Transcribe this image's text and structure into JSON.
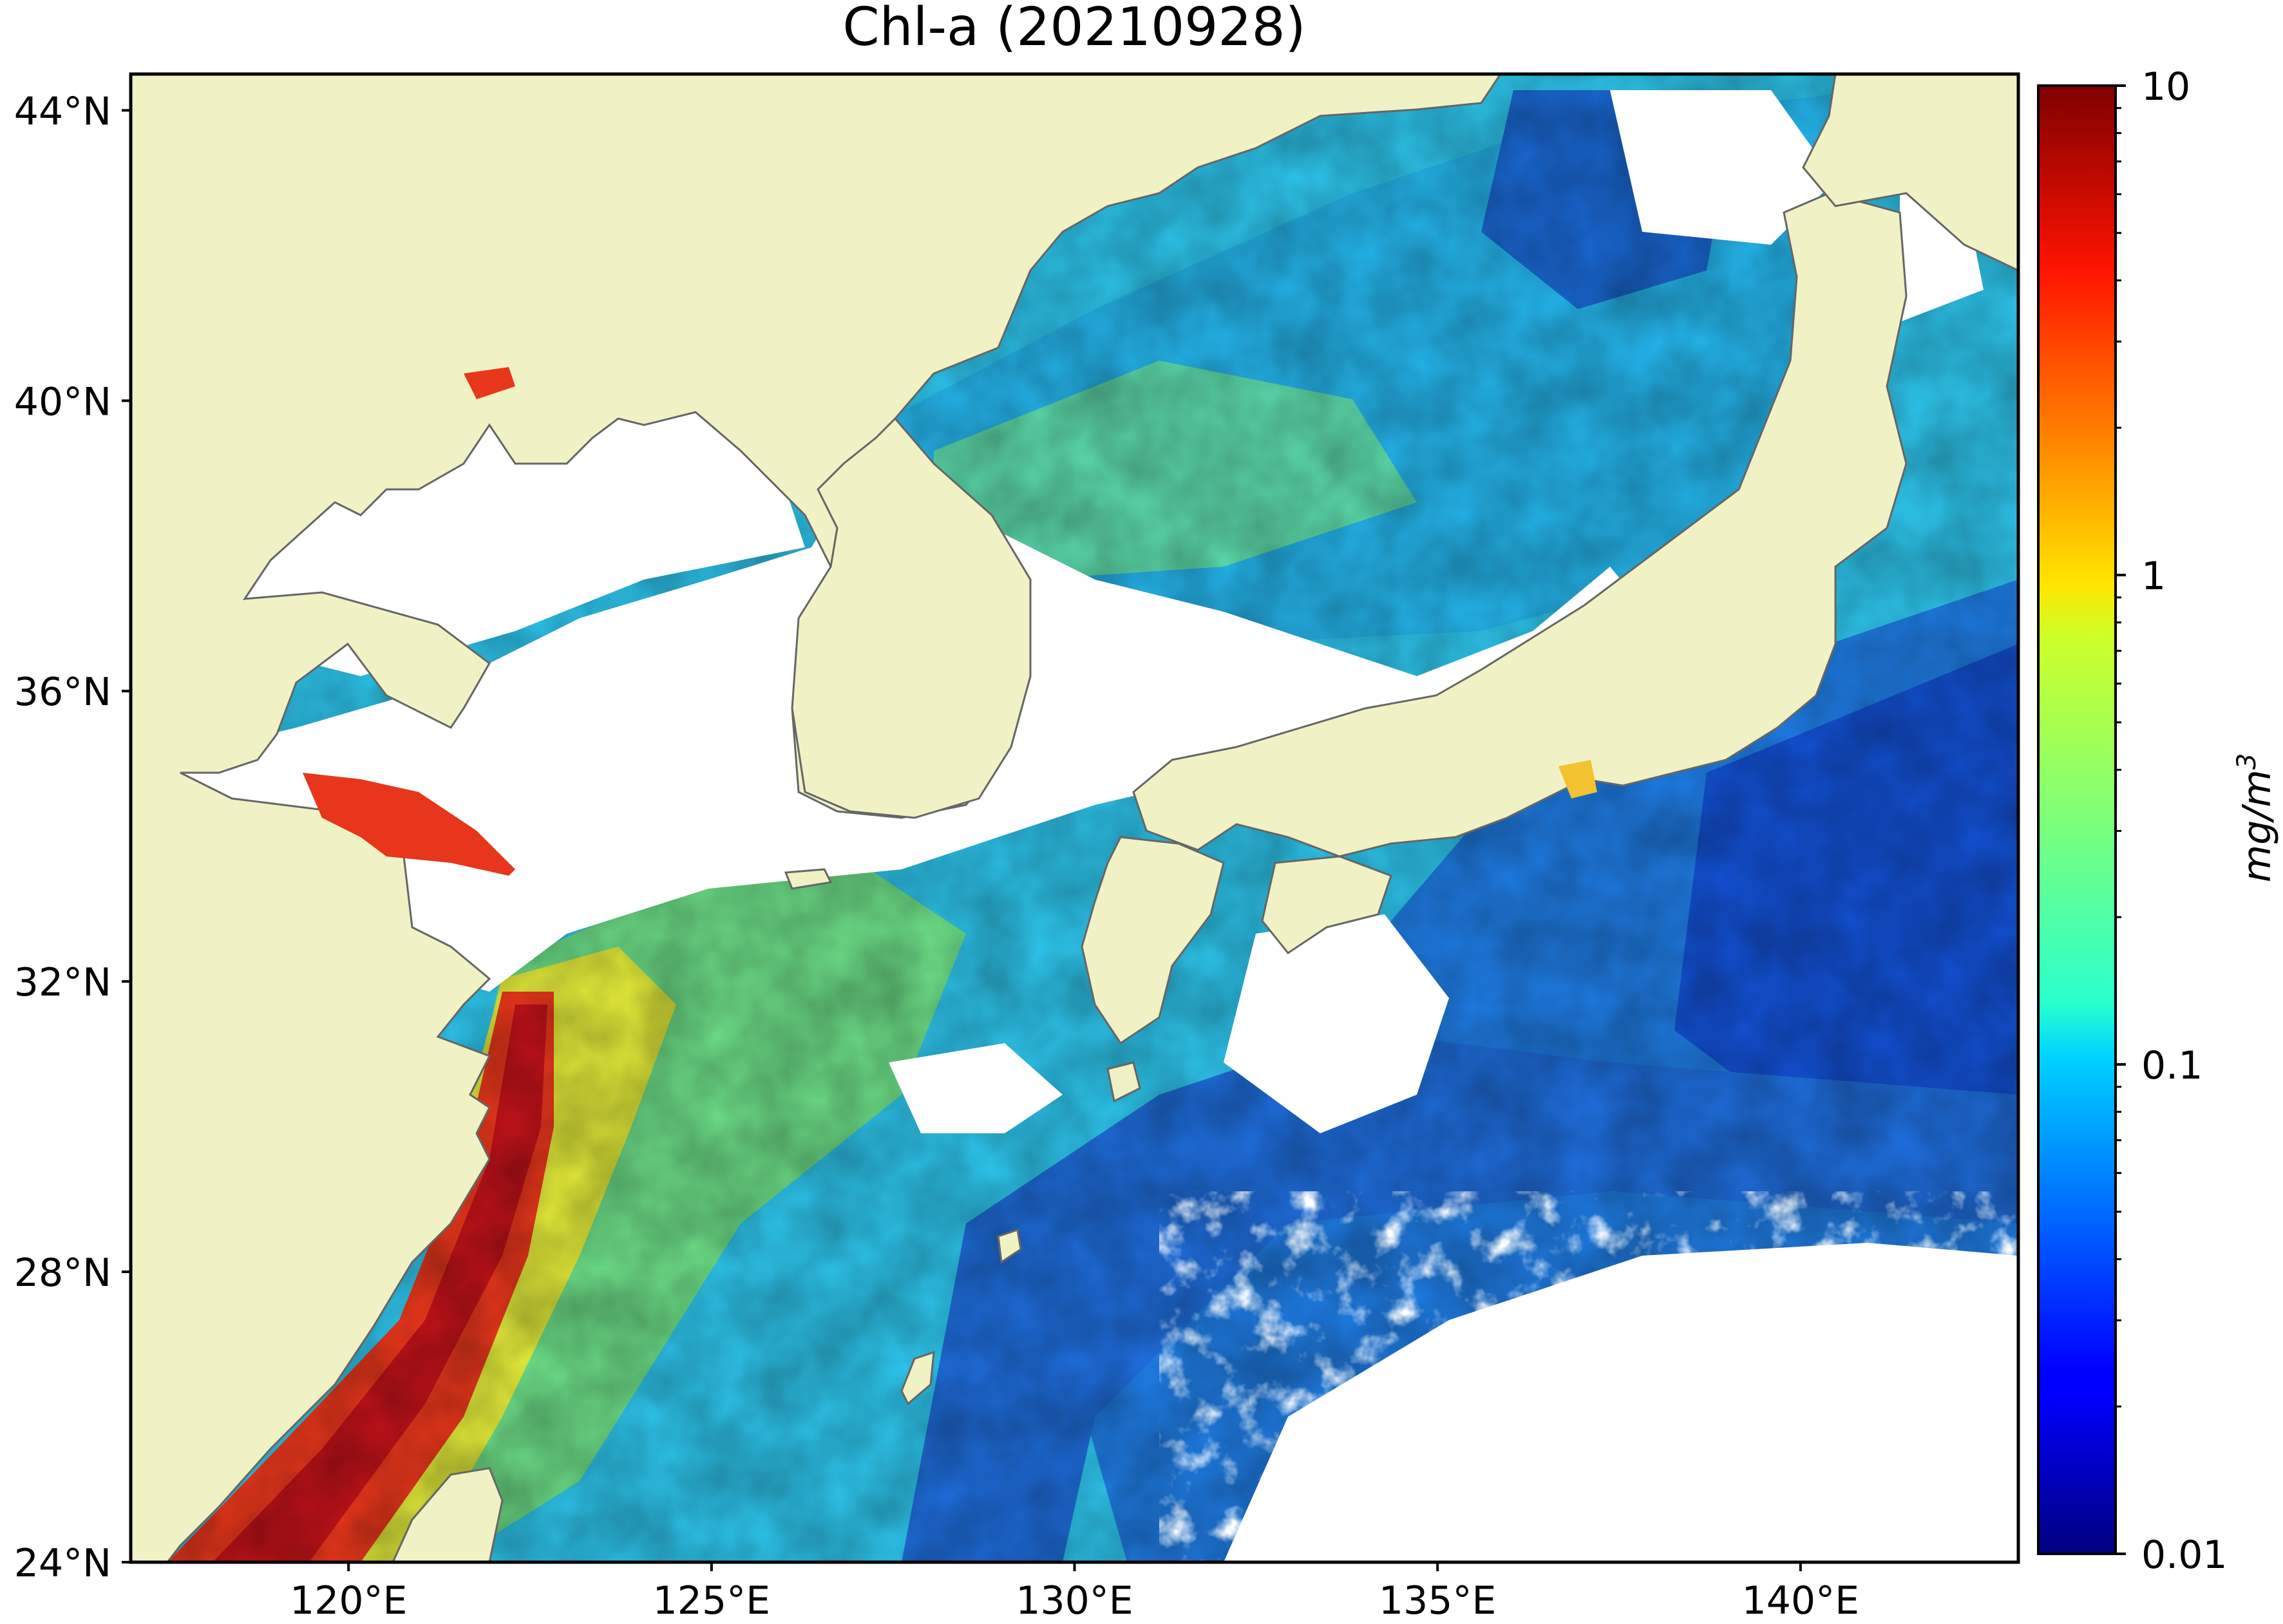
{
  "title": "Chl-a (20210928)",
  "map": {
    "lon_range": [
      117,
      143
    ],
    "lat_range": [
      24,
      44.5
    ],
    "lat_ticks": [
      {
        "value": 44,
        "label": "44°N"
      },
      {
        "value": 40,
        "label": "40°N"
      },
      {
        "value": 36,
        "label": "36°N"
      },
      {
        "value": 32,
        "label": "32°N"
      },
      {
        "value": 28,
        "label": "28°N"
      },
      {
        "value": 24,
        "label": "24°N"
      }
    ],
    "lon_ticks": [
      {
        "value": 120,
        "label": "120°E"
      },
      {
        "value": 125,
        "label": "125°E"
      },
      {
        "value": 130,
        "label": "130°E"
      },
      {
        "value": 135,
        "label": "135°E"
      },
      {
        "value": 140,
        "label": "140°E"
      }
    ],
    "land_color": "#f0f2c6",
    "cloud_color": "#ffffff",
    "coast_color": "#666666"
  },
  "colorbar": {
    "colormap": "jet",
    "scale": "log",
    "range": [
      0.01,
      10
    ],
    "unit": "mg/m3",
    "ticks": [
      {
        "value": 10,
        "label": "10"
      },
      {
        "value": 1,
        "label": "1"
      },
      {
        "value": 0.1,
        "label": "0.1"
      },
      {
        "value": 0.01,
        "label": "0.01"
      }
    ]
  }
}
